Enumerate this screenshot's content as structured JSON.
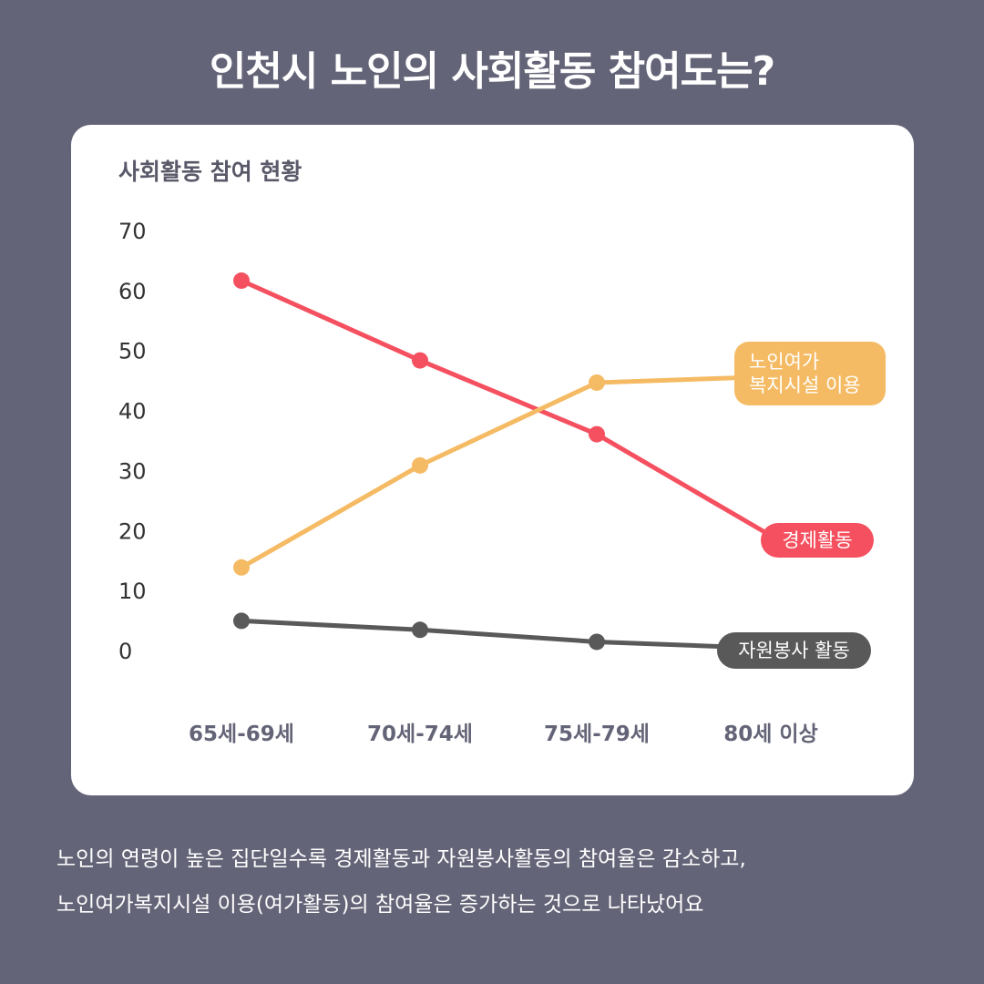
{
  "title": "인천시 노인의 사회활동 참여도는?",
  "caption": {
    "line1": "노인의 연령이 높은 집단일수록 경제활동과 자원봉사활동의 참여율은 감소하고,",
    "line2": "노인여가복지시설 이용(여가활동)의 참여율은 증가하는 것으로 나타났어요"
  },
  "chart_data": {
    "type": "line",
    "title": "사회활동 참여 현황",
    "categories": [
      "65세-69세",
      "70세-74세",
      "75세-79세",
      "80세 이상"
    ],
    "ylim": [
      0,
      70
    ],
    "yticks": [
      0,
      10,
      20,
      30,
      40,
      50,
      60,
      70
    ],
    "grid": false,
    "series": [
      {
        "name": "경제활동",
        "label_lines": [
          "경제활동"
        ],
        "color": "#f5505f",
        "values": [
          61.8,
          48.5,
          36.2,
          19.3
        ],
        "marker_last": false
      },
      {
        "name": "노인여가 복지시설 이용",
        "label_lines": [
          "노인여가",
          "복지시설 이용"
        ],
        "color": "#f5bb64",
        "values": [
          14.0,
          31.0,
          44.8,
          45.8
        ],
        "marker_last": false
      },
      {
        "name": "자원봉사 활동",
        "label_lines": [
          "자원봉사 활동"
        ],
        "color": "#595959",
        "values": [
          5.1,
          3.6,
          1.6,
          0.5
        ],
        "marker_last": false
      }
    ]
  }
}
